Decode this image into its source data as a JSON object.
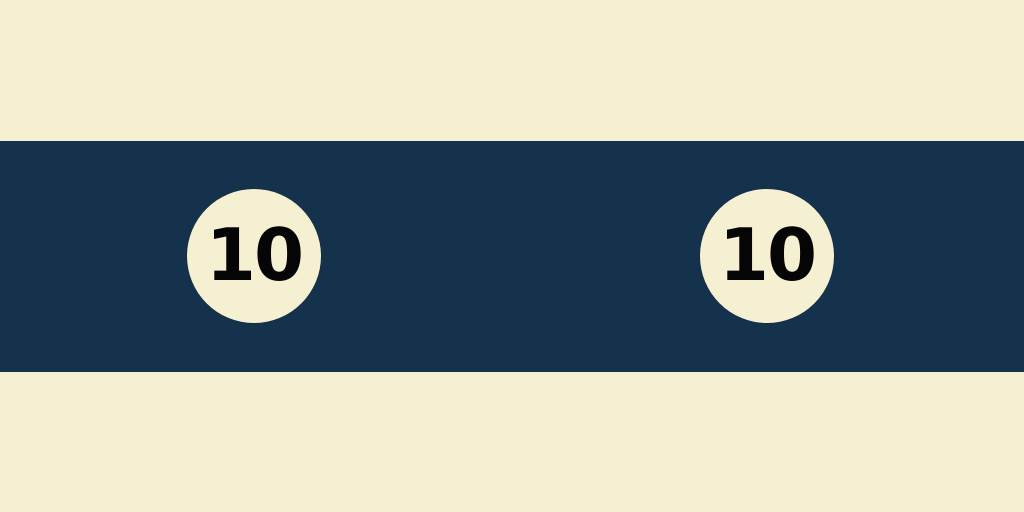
{
  "tokens": {
    "left": {
      "label": "10"
    },
    "right": {
      "label": "10"
    }
  },
  "colors": {
    "background": "#f6f0d3",
    "band": "#15324d",
    "disc": "#f6f0d3",
    "number": "#050505"
  }
}
